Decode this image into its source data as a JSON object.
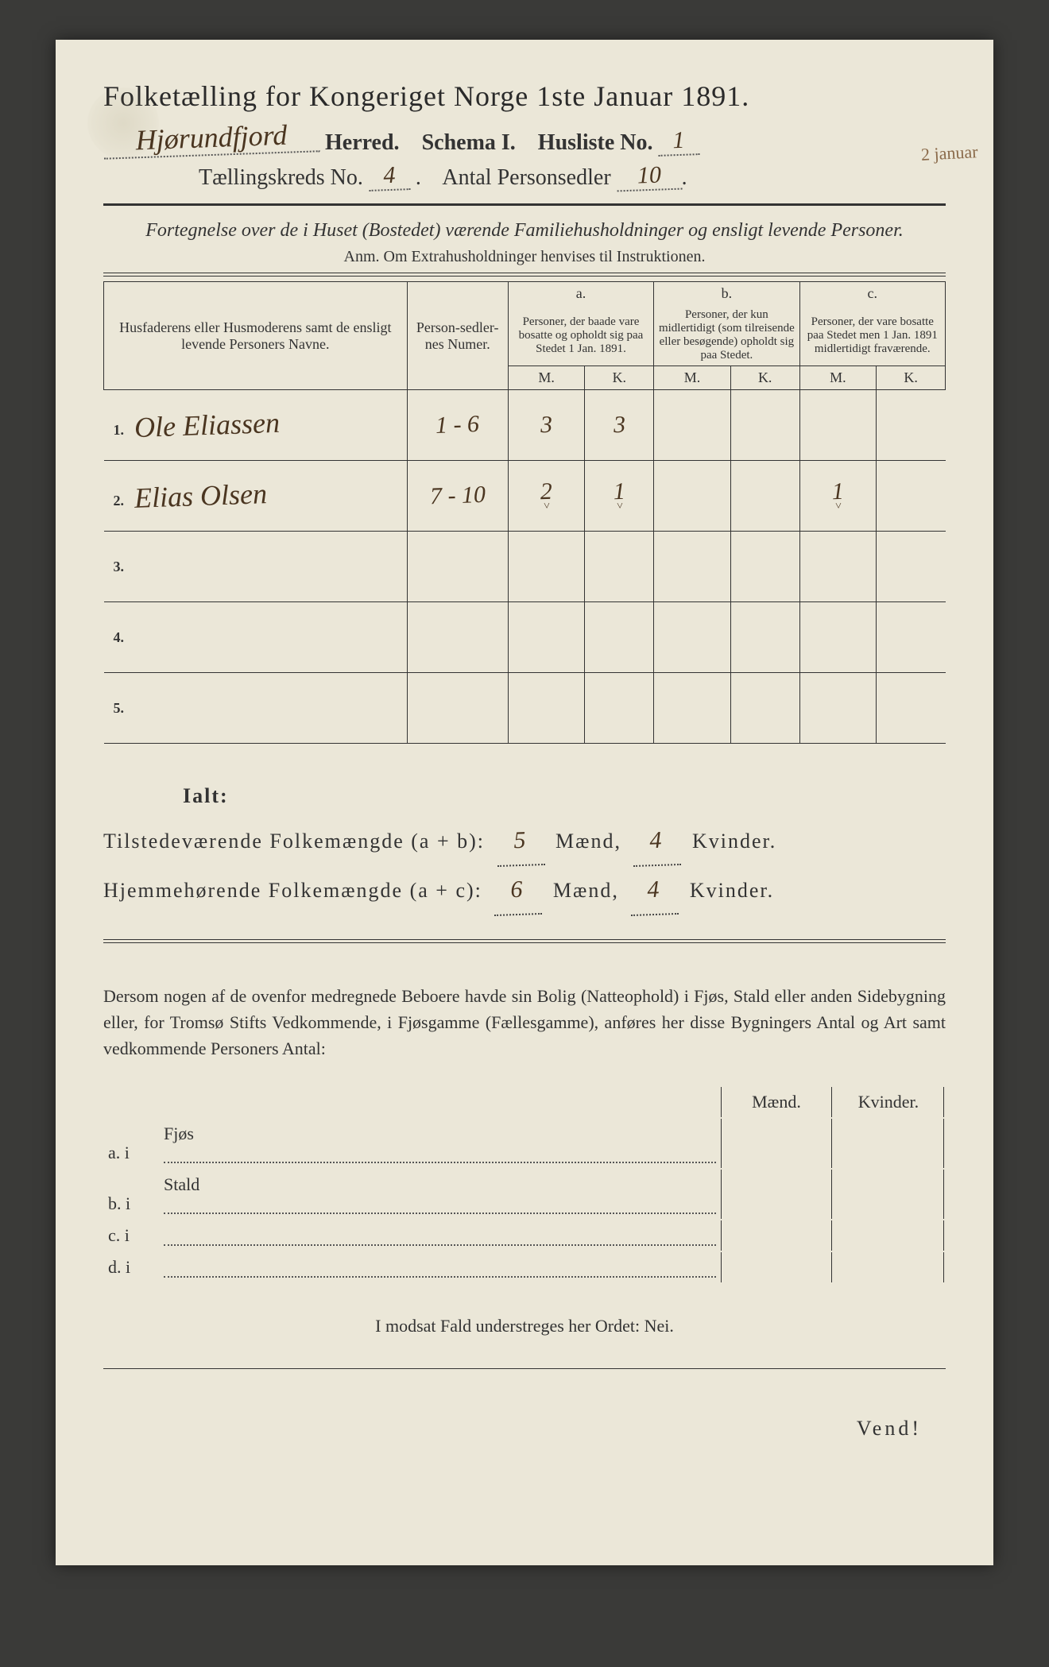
{
  "header": {
    "title": "Folketælling for Kongeriget Norge 1ste Januar 1891.",
    "herred_label": "Herred.",
    "herred_value": "Hjørundfjord",
    "schema": "Schema I.",
    "husliste_label": "Husliste No.",
    "husliste_value": "1",
    "kreds_label": "Tællingskreds No.",
    "kreds_value": "4",
    "sedler_label": "Antal Personsedler",
    "sedler_value": "10",
    "margin_note": "2 januar"
  },
  "desc": {
    "line1": "Fortegnelse over de i Huset (Bostedet) værende Familiehusholdninger og ensligt levende Personer.",
    "anm": "Anm. Om Extrahusholdninger henvises til Instruktionen."
  },
  "table": {
    "col_names": "Husfaderens eller Husmoderens samt de ensligt levende Personers Navne.",
    "col_num": "Person-sedler-nes Numer.",
    "col_a_hdr": "a.",
    "col_a": "Personer, der baade vare bosatte og opholdt sig paa Stedet 1 Jan. 1891.",
    "col_b_hdr": "b.",
    "col_b": "Personer, der kun midlertidigt (som tilreisende eller besøgende) opholdt sig paa Stedet.",
    "col_c_hdr": "c.",
    "col_c": "Personer, der vare bosatte paa Stedet men 1 Jan. 1891 midlertidigt fraværende.",
    "m": "M.",
    "k": "K.",
    "rows": [
      {
        "n": "1.",
        "name": "Ole Eliassen",
        "num": "1 - 6",
        "am": "3",
        "ak": "3",
        "bm": "",
        "bk": "",
        "cm": "",
        "ck": ""
      },
      {
        "n": "2.",
        "name": "Elias Olsen",
        "num": "7 - 10",
        "am": "2",
        "ak": "1",
        "bm": "",
        "bk": "",
        "cm": "1",
        "ck": ""
      },
      {
        "n": "3.",
        "name": "",
        "num": "",
        "am": "",
        "ak": "",
        "bm": "",
        "bk": "",
        "cm": "",
        "ck": ""
      },
      {
        "n": "4.",
        "name": "",
        "num": "",
        "am": "",
        "ak": "",
        "bm": "",
        "bk": "",
        "cm": "",
        "ck": ""
      },
      {
        "n": "5.",
        "name": "",
        "num": "",
        "am": "",
        "ak": "",
        "bm": "",
        "bk": "",
        "cm": "",
        "ck": ""
      }
    ]
  },
  "totals": {
    "ialt": "Ialt:",
    "line1_label": "Tilstedeværende Folkemængde (a + b):",
    "line1_m": "5",
    "line1_k": "4",
    "line2_label": "Hjemmehørende Folkemængde (a + c):",
    "line2_m": "6",
    "line2_k": "4",
    "maend": "Mænd,",
    "kvinder": "Kvinder."
  },
  "para": "Dersom nogen af de ovenfor medregnede Beboere havde sin Bolig (Natteophold) i Fjøs, Stald eller anden Sidebygning eller, for Tromsø Stifts Vedkommende, i Fjøsgamme (Fællesgamme), anføres her disse Bygningers Antal og Art samt vedkommende Personers Antal:",
  "bygning": {
    "hdr_m": "Mænd.",
    "hdr_k": "Kvinder.",
    "rows": [
      {
        "l": "a. i",
        "t": "Fjøs"
      },
      {
        "l": "b. i",
        "t": "Stald"
      },
      {
        "l": "c. i",
        "t": ""
      },
      {
        "l": "d. i",
        "t": ""
      }
    ]
  },
  "footer": {
    "nei": "I modsat Fald understreges her Ordet: Nei.",
    "vend": "Vend!"
  }
}
